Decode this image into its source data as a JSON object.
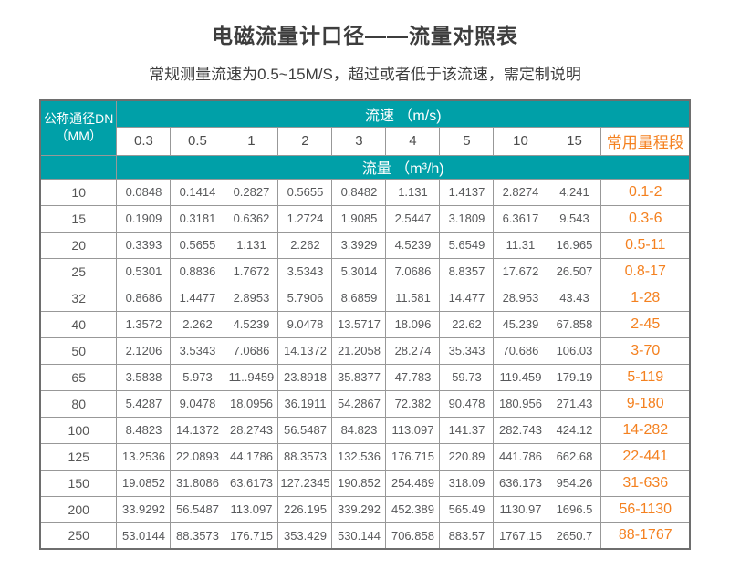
{
  "chart_data": {
    "type": "table",
    "title": "电磁流量计口径——流量对照表",
    "subtitle": "常规测量流速为0.5~15M/S，超过或者低于该流速，需定制说明",
    "corner_header": {
      "line1": "公称通径DN",
      "line2": "（MM）"
    },
    "velocity_group_header": "流速 （m/s)",
    "velocity_columns": [
      "0.3",
      "0.5",
      "1",
      "2",
      "3",
      "4",
      "5",
      "10",
      "15"
    ],
    "range_column_header": "常用量程段",
    "flow_group_header": "流量 （m³/h)",
    "velocity_unit": "m/s",
    "flow_unit": "m³/h",
    "rows": [
      {
        "dn": "10",
        "flows": [
          "0.0848",
          "0.1414",
          "0.2827",
          "0.5655",
          "0.8482",
          "1.131",
          "1.4137",
          "2.8274",
          "4.241"
        ],
        "range": "0.1-2"
      },
      {
        "dn": "15",
        "flows": [
          "0.1909",
          "0.3181",
          "0.6362",
          "1.2724",
          "1.9085",
          "2.5447",
          "3.1809",
          "6.3617",
          "9.543"
        ],
        "range": "0.3-6"
      },
      {
        "dn": "20",
        "flows": [
          "0.3393",
          "0.5655",
          "1.131",
          "2.262",
          "3.3929",
          "4.5239",
          "5.6549",
          "11.31",
          "16.965"
        ],
        "range": "0.5-11"
      },
      {
        "dn": "25",
        "flows": [
          "0.5301",
          "0.8836",
          "1.7672",
          "3.5343",
          "5.3014",
          "7.0686",
          "8.8357",
          "17.672",
          "26.507"
        ],
        "range": "0.8-17"
      },
      {
        "dn": "32",
        "flows": [
          "0.8686",
          "1.4477",
          "2.8953",
          "5.7906",
          "8.6859",
          "11.581",
          "14.477",
          "28.953",
          "43.43"
        ],
        "range": "1-28"
      },
      {
        "dn": "40",
        "flows": [
          "1.3572",
          "2.262",
          "4.5239",
          "9.0478",
          "13.5717",
          "18.096",
          "22.62",
          "45.239",
          "67.858"
        ],
        "range": "2-45"
      },
      {
        "dn": "50",
        "flows": [
          "2.1206",
          "3.5343",
          "7.0686",
          "14.1372",
          "21.2058",
          "28.274",
          "35.343",
          "70.686",
          "106.03"
        ],
        "range": "3-70"
      },
      {
        "dn": "65",
        "flows": [
          "3.5838",
          "5.973",
          "11..9459",
          "23.8918",
          "35.8377",
          "47.783",
          "59.73",
          "119.459",
          "179.19"
        ],
        "range": "5-119"
      },
      {
        "dn": "80",
        "flows": [
          "5.4287",
          "9.0478",
          "18.0956",
          "36.1911",
          "54.2867",
          "72.382",
          "90.478",
          "180.956",
          "271.43"
        ],
        "range": "9-180"
      },
      {
        "dn": "100",
        "flows": [
          "8.4823",
          "14.1372",
          "28.2743",
          "56.5487",
          "84.823",
          "113.097",
          "141.37",
          "282.743",
          "424.12"
        ],
        "range": "14-282"
      },
      {
        "dn": "125",
        "flows": [
          "13.2536",
          "22.0893",
          "44.1786",
          "88.3573",
          "132.536",
          "176.715",
          "220.89",
          "441.786",
          "662.68"
        ],
        "range": "22-441"
      },
      {
        "dn": "150",
        "flows": [
          "19.0852",
          "31.8086",
          "63.6173",
          "127.2345",
          "190.852",
          "254.469",
          "318.09",
          "636.173",
          "954.26"
        ],
        "range": "31-636"
      },
      {
        "dn": "200",
        "flows": [
          "33.9292",
          "56.5487",
          "113.097",
          "226.195",
          "339.292",
          "452.389",
          "565.49",
          "1130.97",
          "1696.5"
        ],
        "range": "56-1130"
      },
      {
        "dn": "250",
        "flows": [
          "53.0144",
          "88.3573",
          "176.715",
          "353.429",
          "530.144",
          "706.858",
          "883.57",
          "1767.15",
          "2650.7"
        ],
        "range": "88-1767"
      }
    ]
  },
  "colors": {
    "header_teal": "#00a0a8",
    "accent_orange": "#f48120",
    "data_text": "#58595b",
    "title_text": "#3d3d3d"
  }
}
